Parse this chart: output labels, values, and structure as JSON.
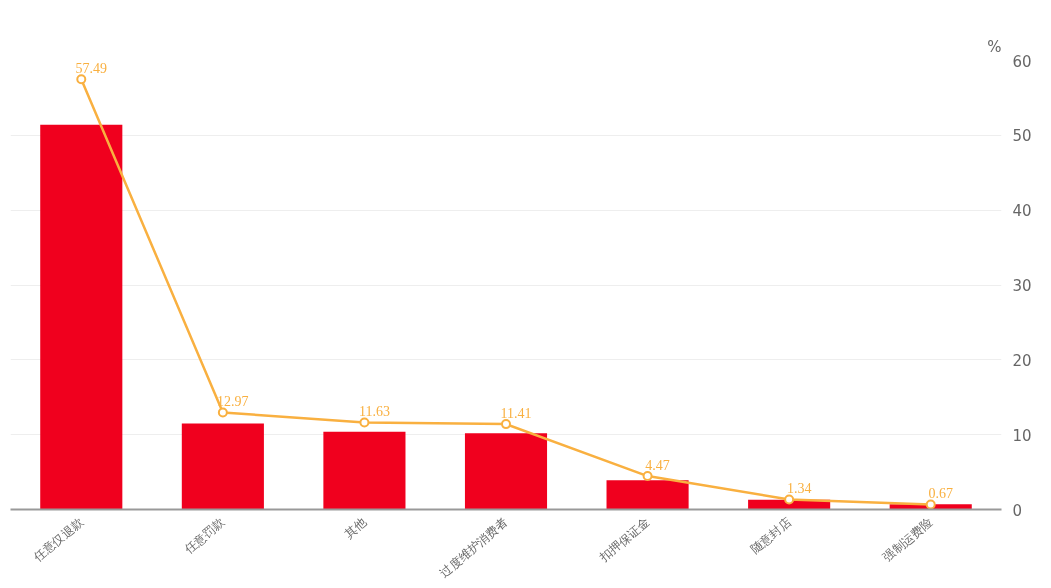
{
  "chart_data": {
    "type": "bar",
    "ylabel": "%",
    "categories": [
      "任意仅退款",
      "任意罚款",
      "其他",
      "过度维护消费者",
      "扣押保证金",
      "随意封店",
      "强制运费险"
    ],
    "series": [
      {
        "color": "#f0001e",
        "values": [
          51.4,
          11.5,
          10.4,
          10.2,
          3.9,
          1.3,
          0.7
        ]
      },
      {
        "type": "line",
        "color": "#f9b040",
        "marker": "circle",
        "values": [
          57.49,
          12.97,
          11.63,
          11.41,
          4.47,
          1.34,
          0.67
        ],
        "value_labels": [
          "57.49",
          "12.97",
          "11.63",
          "11.41",
          "4.47",
          "1.34",
          "0.67"
        ]
      }
    ],
    "ylim": [
      0,
      60
    ],
    "yticks": [
      0,
      10,
      20,
      30,
      40,
      50,
      60
    ],
    "grid": "y"
  }
}
